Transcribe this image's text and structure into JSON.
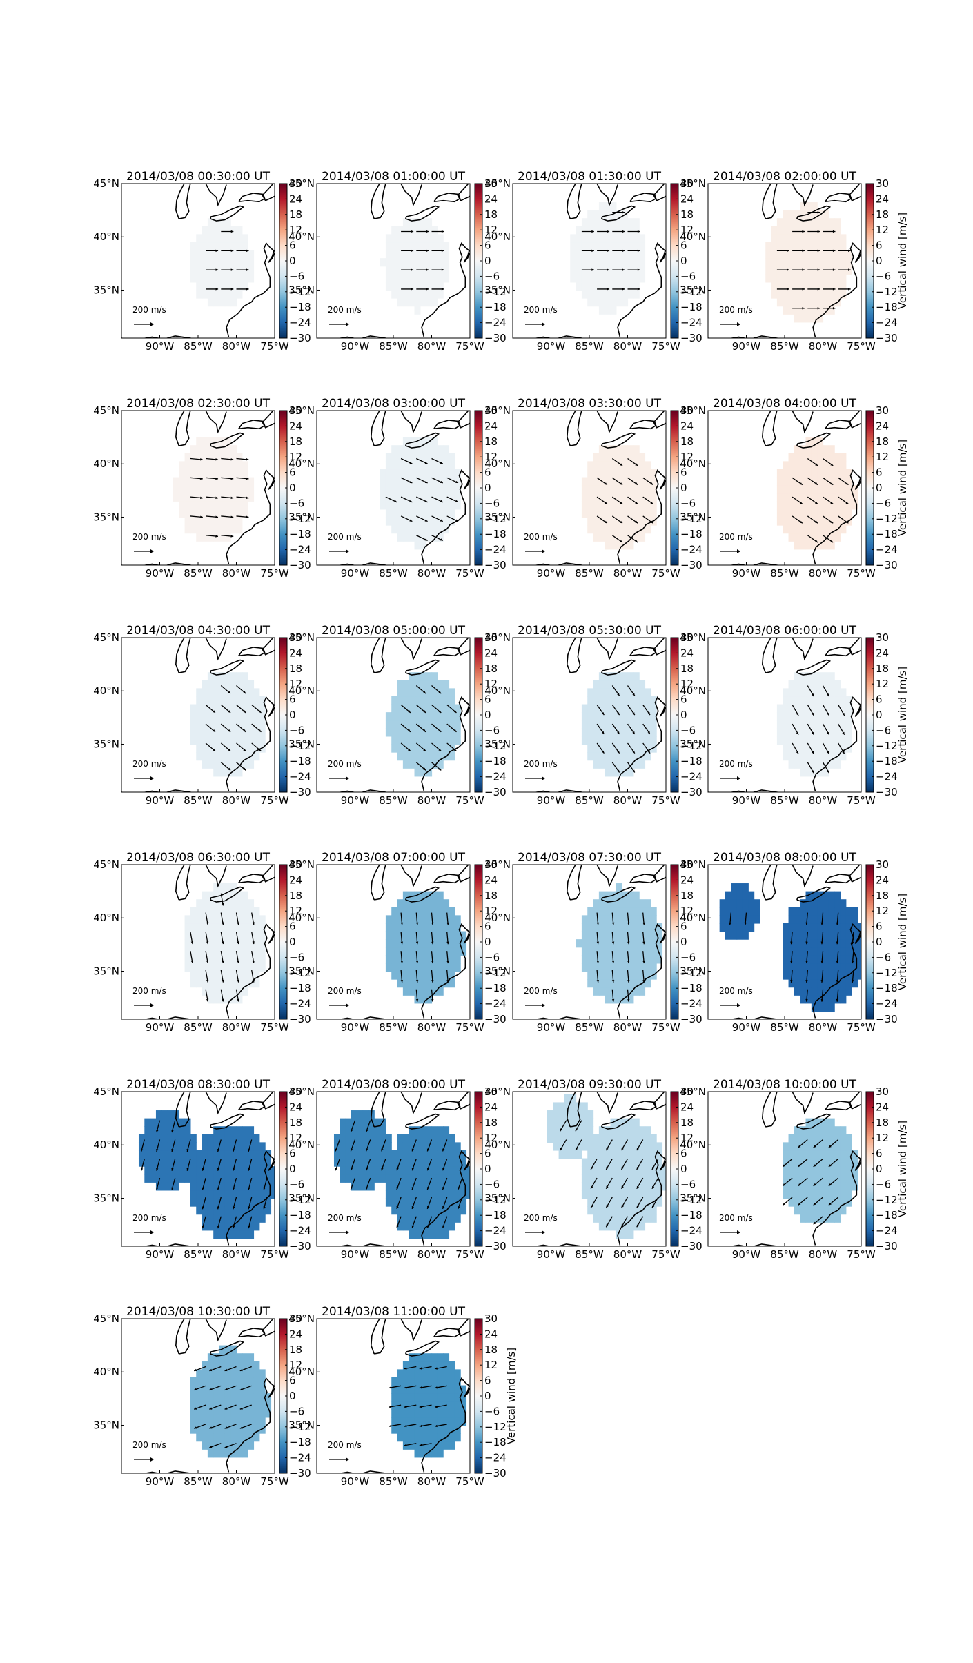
{
  "figure": {
    "colorbar_label": "Vertical wind [m/s]",
    "scale_label": "200 m/s",
    "colormap": "RdBu_r",
    "colors": {
      "coast": "#000000",
      "axes": "#000000",
      "background": "#ffffff"
    }
  },
  "chart_data": {
    "type": "heatmap",
    "title": "",
    "variable": "Vertical wind [m/s]",
    "clim": [
      -30,
      30
    ],
    "colorbar_ticks": [
      -30,
      -24,
      -18,
      -12,
      -6,
      0,
      6,
      12,
      18,
      24,
      30
    ],
    "colorbar_tick_labels": [
      "−30",
      "−24",
      "−18",
      "−12",
      "−6",
      "0",
      "6",
      "12",
      "18",
      "24",
      "30"
    ],
    "xlim": [
      -95,
      -75
    ],
    "ylim": [
      30.5,
      45
    ],
    "x_ticks": [
      -90,
      -85,
      -80,
      -75
    ],
    "x_tick_labels": [
      "90°W",
      "85°W",
      "80°W",
      "75°W"
    ],
    "y_ticks": [
      35,
      40,
      45
    ],
    "y_tick_labels": [
      "35°N",
      "40°N",
      "45°N"
    ],
    "vector_scale": {
      "magnitude": 200,
      "units": "m/s",
      "label": "200 m/s"
    },
    "panels": [
      {
        "title": "2014/03/08 00:30:00 UT",
        "value": -1,
        "regions": [
          [
            -82,
            37.5,
            4.2
          ]
        ],
        "wind_dir": 0,
        "colorbar_label_shown": false
      },
      {
        "title": "2014/03/08 01:00:00 UT",
        "value": -1,
        "regions": [
          [
            -82,
            37.5,
            4.4
          ]
        ],
        "wind_dir": 0,
        "colorbar_label_shown": false
      },
      {
        "title": "2014/03/08 01:30:00 UT",
        "value": -1,
        "regions": [
          [
            -82.5,
            38,
            5
          ]
        ],
        "wind_dir": 0,
        "colorbar_label_shown": false
      },
      {
        "title": "2014/03/08 02:00:00 UT",
        "value": 2,
        "regions": [
          [
            -82,
            37.5,
            5.5
          ]
        ],
        "wind_dir": 0,
        "colorbar_label_shown": true
      },
      {
        "title": "2014/03/08 02:30:00 UT",
        "value": 1,
        "regions": [
          [
            -83,
            37.5,
            5
          ]
        ],
        "wind_dir": -5,
        "colorbar_label_shown": false
      },
      {
        "title": "2014/03/08 03:00:00 UT",
        "value": -2,
        "regions": [
          [
            -81.5,
            37.5,
            5.2
          ]
        ],
        "wind_dir": -25,
        "colorbar_label_shown": false
      },
      {
        "title": "2014/03/08 03:30:00 UT",
        "value": 2,
        "regions": [
          [
            -81,
            37,
            5
          ]
        ],
        "wind_dir": -35,
        "colorbar_label_shown": false
      },
      {
        "title": "2014/03/08 04:00:00 UT",
        "value": 3,
        "regions": [
          [
            -81,
            37,
            5.2
          ]
        ],
        "wind_dir": -35,
        "colorbar_label_shown": true
      },
      {
        "title": "2014/03/08 04:30:00 UT",
        "value": -3,
        "regions": [
          [
            -81,
            37,
            5
          ]
        ],
        "wind_dir": -40,
        "colorbar_label_shown": false
      },
      {
        "title": "2014/03/08 05:00:00 UT",
        "value": -10,
        "regions": [
          [
            -81,
            37,
            4.8
          ]
        ],
        "wind_dir": -40,
        "colorbar_label_shown": false
      },
      {
        "title": "2014/03/08 05:30:00 UT",
        "value": -6,
        "regions": [
          [
            -81,
            37,
            5
          ]
        ],
        "wind_dir": -55,
        "colorbar_label_shown": false
      },
      {
        "title": "2014/03/08 06:00:00 UT",
        "value": -2,
        "regions": [
          [
            -81,
            37,
            5
          ]
        ],
        "wind_dir": -60,
        "colorbar_label_shown": true
      },
      {
        "title": "2014/03/08 06:30:00 UT",
        "value": -2,
        "regions": [
          [
            -81.5,
            37.5,
            5.5
          ]
        ],
        "wind_dir": -80,
        "colorbar_label_shown": false
      },
      {
        "title": "2014/03/08 07:00:00 UT",
        "value": -14,
        "regions": [
          [
            -81,
            37.5,
            5.2
          ]
        ],
        "wind_dir": -85,
        "colorbar_label_shown": false
      },
      {
        "title": "2014/03/08 07:30:00 UT",
        "value": -11,
        "regions": [
          [
            -81,
            37.5,
            5.4
          ]
        ],
        "wind_dir": -85,
        "colorbar_label_shown": false
      },
      {
        "title": "2014/03/08 08:00:00 UT",
        "value": -24,
        "regions": [
          [
            -80,
            37,
            5.5
          ],
          [
            -91,
            40.5,
            2.6
          ]
        ],
        "wind_dir": -95,
        "colorbar_label_shown": true
      },
      {
        "title": "2014/03/08 08:30:00 UT",
        "value": -22,
        "regions": [
          [
            -80.5,
            36.5,
            5.5
          ],
          [
            -89,
            39.5,
            3.8
          ]
        ],
        "wind_dir": -105,
        "colorbar_label_shown": false
      },
      {
        "title": "2014/03/08 09:00:00 UT",
        "value": -20,
        "regions": [
          [
            -80.5,
            36.5,
            5.5
          ],
          [
            -89,
            39.5,
            3.8
          ]
        ],
        "wind_dir": -110,
        "colorbar_label_shown": false
      },
      {
        "title": "2014/03/08 09:30:00 UT",
        "value": -8,
        "regions": [
          [
            -80.5,
            37,
            5.5
          ],
          [
            -87.5,
            41.5,
            3
          ]
        ],
        "wind_dir": -120,
        "colorbar_label_shown": false
      },
      {
        "title": "2014/03/08 10:00:00 UT",
        "value": -12,
        "regions": [
          [
            -80.5,
            37.5,
            5
          ]
        ],
        "wind_dir": -140,
        "colorbar_label_shown": true
      },
      {
        "title": "2014/03/08 10:30:00 UT",
        "value": -14,
        "regions": [
          [
            -81,
            37,
            5.3
          ]
        ],
        "wind_dir": -160,
        "colorbar_label_shown": false
      },
      {
        "title": "2014/03/08 11:00:00 UT",
        "value": -18,
        "regions": [
          [
            -80.5,
            37,
            5
          ]
        ],
        "wind_dir": -170,
        "colorbar_label_shown": true
      }
    ]
  }
}
